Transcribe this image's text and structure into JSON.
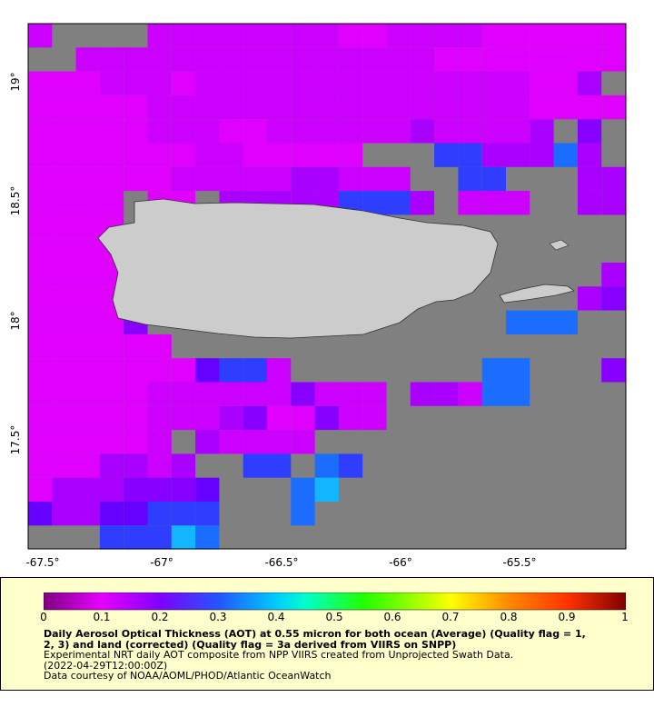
{
  "map": {
    "lon_range": [
      -67.55,
      -65.05
    ],
    "lat_range": [
      17.05,
      19.25
    ],
    "lon_ticks": [
      "-67.5°",
      "-67°",
      "-66.5°",
      "-66°",
      "-65.5°"
    ],
    "lat_ticks": [
      "19°",
      "18.5°",
      "18°",
      "17.5°"
    ],
    "ocean_nodata_color": "#808080",
    "land_color": "#cccccc"
  },
  "colorbar": {
    "min": 0,
    "max": 1,
    "ticks": [
      "0",
      "0.1",
      "0.2",
      "0.3",
      "0.4",
      "0.5",
      "0.6",
      "0.7",
      "0.8",
      "0.9",
      "1"
    ]
  },
  "caption": {
    "title_line1": "Daily Aerosol Optical Thickness (AOT) at 0.55 micron for both ocean (Average) (Quality flag = 1,",
    "title_line2": "2, 3) and land (corrected) (Quality flag = 3a derived from VIIRS on SNPP)",
    "line3": "Experimental NRT daily AOT composite from NPP VIIRS created from Unprojected Swath Data.",
    "line4": "(2022-04-29T12:00:00Z)",
    "line5": "Data courtesy of NOAA/AOML/PHOD/Atlantic OceanWatch"
  }
}
